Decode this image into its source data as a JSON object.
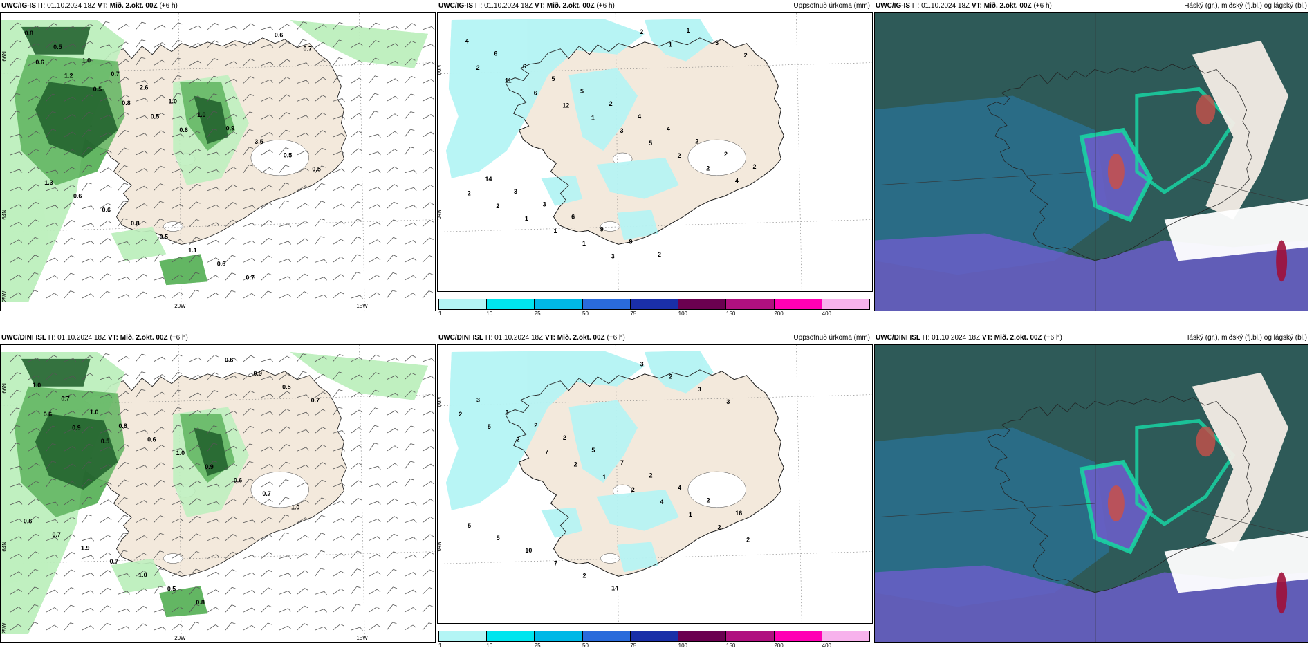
{
  "rows": [
    {
      "model": "UWC/IG-IS",
      "init": "IT: 01.10.2024 18Z",
      "valid_prefix": "VT:",
      "valid_time": "Mið. 2.okt. 00Z",
      "lead": "(+6 h)",
      "precip_values": [
        "4",
        "6",
        "6",
        "5",
        "5",
        "2",
        "4",
        "4",
        "2",
        "2",
        "2",
        "14",
        "3",
        "3",
        "6",
        "9",
        "8",
        "2",
        "1",
        "3",
        "2",
        "2",
        "11",
        "6",
        "12",
        "1",
        "3",
        "5",
        "2",
        "2",
        "4",
        "2",
        "2",
        "1",
        "1",
        "1",
        "3",
        "2",
        "1"
      ],
      "wind_values": [
        "0.8",
        "0.5",
        "1.0",
        "0.7",
        "2.6",
        "1.0",
        "1.0",
        "0.9",
        "3.5",
        "0.5",
        "0.5",
        "1.3",
        "0.6",
        "0.6",
        "0.8",
        "0.5",
        "1.1",
        "0.6",
        "0.7",
        "0.6",
        "0.7",
        "0.6",
        "1.2",
        "0.5",
        "0.8",
        "0.5",
        "0.6"
      ]
    },
    {
      "model": "UWC/DINI ISL",
      "init": "IT: 01.10.2024 18Z",
      "valid_prefix": "VT:",
      "valid_time": "Mið. 2.okt. 00Z",
      "lead": "(+6 h)",
      "precip_values": [
        "3",
        "3",
        "2",
        "2",
        "5",
        "7",
        "2",
        "4",
        "2",
        "16",
        "5",
        "5",
        "10",
        "7",
        "2",
        "14",
        "3",
        "2",
        "3",
        "3",
        "2",
        "5",
        "2",
        "7",
        "2",
        "1",
        "2",
        "4",
        "1",
        "2",
        "2"
      ],
      "wind_values": [
        "1.0",
        "0.7",
        "1.0",
        "0.8",
        "0.6",
        "1.0",
        "0.9",
        "0.6",
        "0.7",
        "1.0",
        "0.6",
        "0.7",
        "1.9",
        "0.7",
        "1.0",
        "0.5",
        "0.8",
        "0.6",
        "0.9",
        "0.5",
        "0.7",
        "0.6",
        "0.9",
        "0.5"
      ]
    }
  ],
  "precip_panel_title": "Uppsöfnuð úrkoma (mm)",
  "cloud_panel_title": "Háský (gr.), miðský (fj.bl.) og lágský (bl.)",
  "axis_labels": {
    "lat_66": "66N",
    "lat_64": "64N",
    "lon_20": "20W",
    "lon_15": "15W",
    "lon_25": "25W"
  },
  "colorbar": {
    "labels": [
      "1",
      "10",
      "25",
      "50",
      "75",
      "100",
      "150",
      "200",
      "400"
    ],
    "colors": [
      "#b3f5f5",
      "#00e5ee",
      "#00b8e6",
      "#2a6bdb",
      "#1a2fa8",
      "#6b0050",
      "#b0107f",
      "#ff00b4",
      "#f7b2ec"
    ]
  },
  "colors": {
    "land": "#f3e9dc",
    "sea": "#ffffff",
    "precip_light": "#b7f4f4",
    "wind_green_light": "#bff0bf",
    "wind_green_mid": "#5fb45f",
    "wind_green_dark": "#1f5e2a",
    "cloud_base": "#2e5a58",
    "cloud_mid": "#2a6e8c",
    "cloud_teal": "#18d3a2",
    "cloud_purple": "#6a5ec8",
    "cloud_red": "#c8504a"
  }
}
